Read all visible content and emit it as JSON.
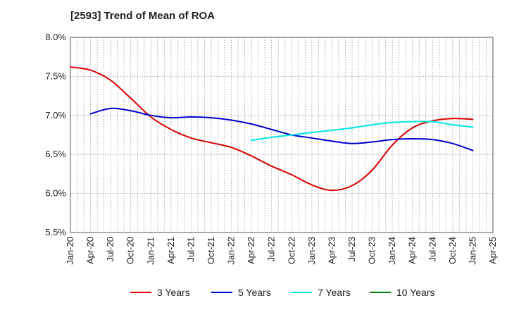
{
  "chart_data": {
    "type": "line",
    "title": "[2593]  Trend of Mean of ROA",
    "xlabel": "",
    "ylabel": "",
    "ylim": [
      5.5,
      8.0
    ],
    "yticks": [
      "5.5%",
      "6.0%",
      "6.5%",
      "7.0%",
      "7.5%",
      "8.0%"
    ],
    "ytick_values": [
      5.5,
      6.0,
      6.5,
      7.0,
      7.5,
      8.0
    ],
    "x_categories": [
      "Jan-20",
      "Apr-20",
      "Jul-20",
      "Oct-20",
      "Jan-21",
      "Apr-21",
      "Jul-21",
      "Oct-21",
      "Jan-22",
      "Apr-22",
      "Jul-22",
      "Oct-22",
      "Jan-23",
      "Apr-23",
      "Jul-23",
      "Oct-23",
      "Jan-24",
      "Apr-24",
      "Jul-24",
      "Oct-24",
      "Jan-25",
      "Apr-25"
    ],
    "grid": true,
    "legend_position": "bottom",
    "series": [
      {
        "name": "3 Years",
        "color": "#dd0000",
        "points": [
          [
            0,
            7.62
          ],
          [
            1,
            7.58
          ],
          [
            2,
            7.45
          ],
          [
            3,
            7.22
          ],
          [
            4,
            6.98
          ],
          [
            5,
            6.82
          ],
          [
            6,
            6.71
          ],
          [
            7,
            6.65
          ],
          [
            8,
            6.59
          ],
          [
            9,
            6.48
          ],
          [
            10,
            6.35
          ],
          [
            11,
            6.24
          ],
          [
            12,
            6.11
          ],
          [
            13,
            6.04
          ],
          [
            14,
            6.1
          ],
          [
            15,
            6.3
          ],
          [
            16,
            6.62
          ],
          [
            17,
            6.84
          ],
          [
            18,
            6.93
          ],
          [
            19,
            6.96
          ],
          [
            20,
            6.95
          ]
        ]
      },
      {
        "name": "5 Years",
        "color": "#0000cc",
        "points": [
          [
            1,
            7.02
          ],
          [
            2,
            7.09
          ],
          [
            3,
            7.06
          ],
          [
            4,
            7.0
          ],
          [
            5,
            6.97
          ],
          [
            6,
            6.98
          ],
          [
            7,
            6.97
          ],
          [
            8,
            6.94
          ],
          [
            9,
            6.89
          ],
          [
            10,
            6.82
          ],
          [
            11,
            6.75
          ],
          [
            12,
            6.71
          ],
          [
            13,
            6.67
          ],
          [
            14,
            6.64
          ],
          [
            15,
            6.66
          ],
          [
            16,
            6.69
          ],
          [
            17,
            6.7
          ],
          [
            18,
            6.69
          ],
          [
            19,
            6.64
          ],
          [
            20,
            6.55
          ]
        ]
      },
      {
        "name": "7 Years",
        "color": "#00e5e5",
        "points": [
          [
            9,
            6.68
          ],
          [
            10,
            6.72
          ],
          [
            11,
            6.75
          ],
          [
            12,
            6.78
          ],
          [
            13,
            6.81
          ],
          [
            14,
            6.84
          ],
          [
            15,
            6.88
          ],
          [
            16,
            6.91
          ],
          [
            17,
            6.92
          ],
          [
            18,
            6.92
          ],
          [
            19,
            6.88
          ],
          [
            20,
            6.85
          ]
        ]
      },
      {
        "name": "10 Years",
        "color": "#008000",
        "points": []
      }
    ]
  }
}
